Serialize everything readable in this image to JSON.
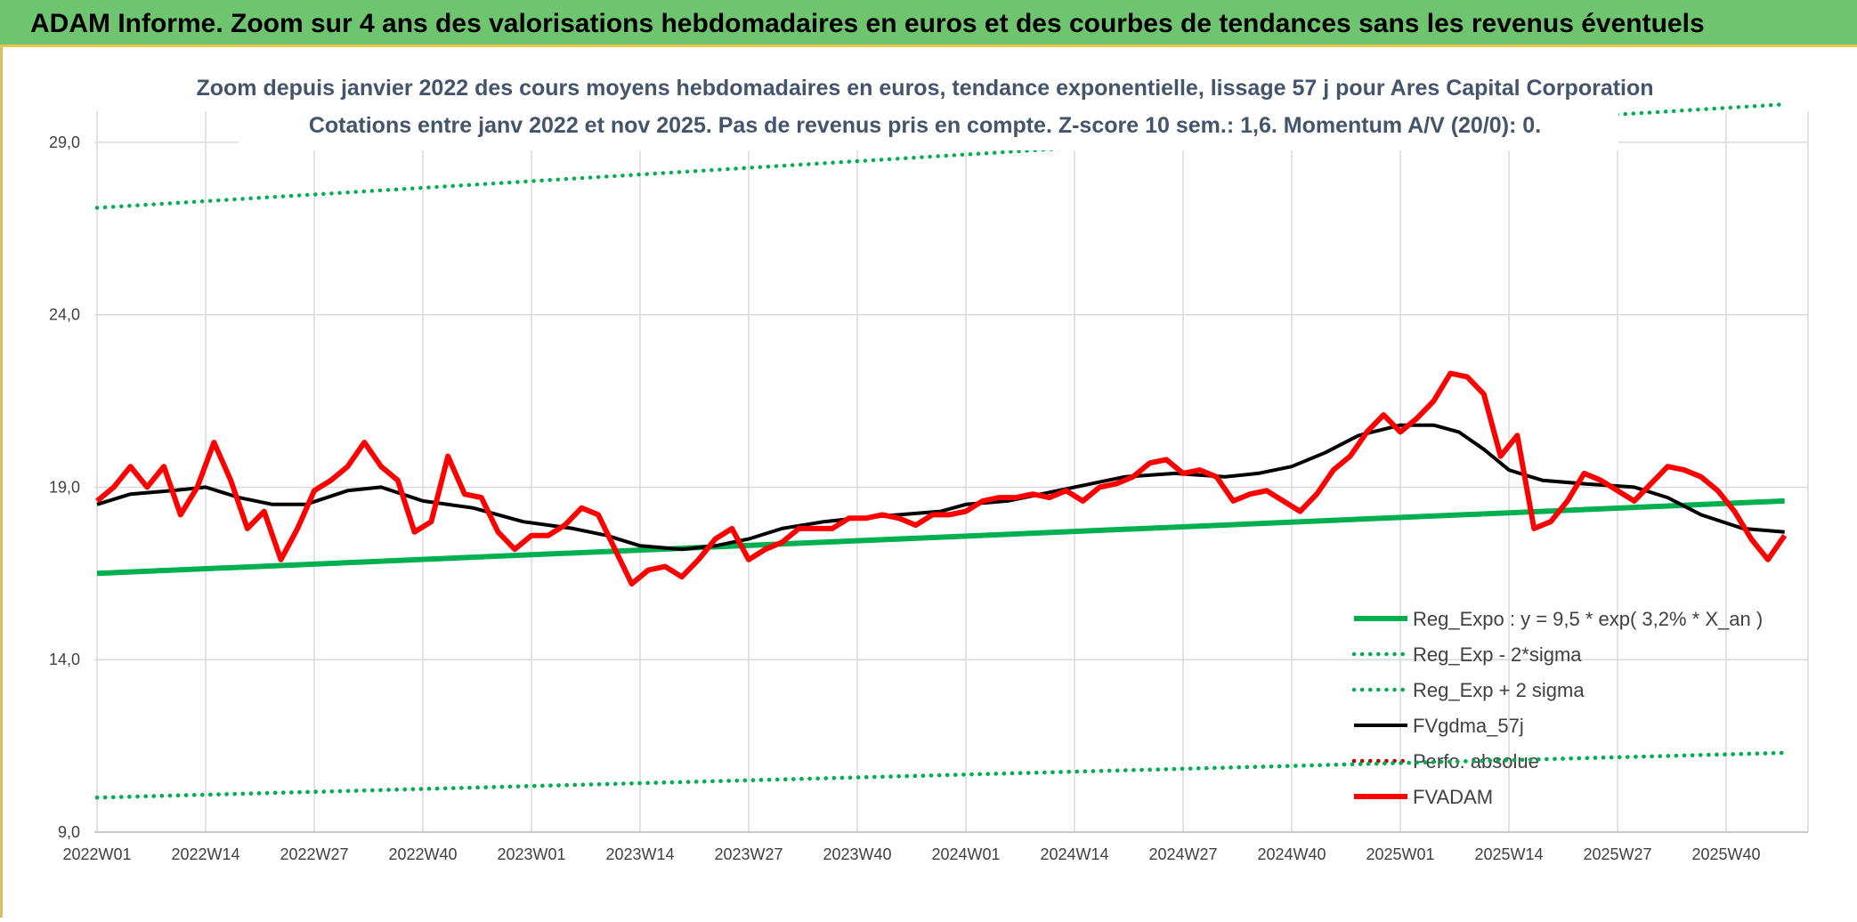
{
  "page": {
    "banner_title": "ADAM Informe. Zoom sur 4 ans des valorisations hebdomadaires en euros et des courbes de tendances sans les revenus éventuels"
  },
  "colors": {
    "banner": "#6fc46f",
    "trend": "#00b050",
    "ma": "#000000",
    "price": "#ff0000",
    "perf": "#c00000",
    "grid": "#d9d9d9",
    "subtitle": "#44546a"
  },
  "chart_data": {
    "type": "line",
    "title_line1": "Zoom depuis janvier 2022 des cours moyens hebdomadaires en euros, tendance exponentielle, lissage 57 j pour Ares Capital Corporation",
    "title_line2": "Cotations entre janv 2022 et nov 2025. Pas de revenus pris en compte. Z-score 10 sem.: 1,6. Momentum A/V (20/0): 0.",
    "xlabel": "",
    "ylabel": "",
    "ylim": [
      9,
      29.9
    ],
    "yticks": [
      "9,0",
      "14,0",
      "19,0",
      "24,0",
      "29,0"
    ],
    "ytick_values": [
      9,
      14,
      19,
      24,
      29
    ],
    "xticks": [
      "2022W01",
      "2022W14",
      "2022W27",
      "2022W40",
      "2023W01",
      "2023W14",
      "2023W27",
      "2023W40",
      "2024W01",
      "2024W14",
      "2024W27",
      "2024W40",
      "2025W01",
      "2025W14",
      "2025W27",
      "2025W40"
    ],
    "grid": true,
    "legend_position": "bottom-right",
    "series": [
      {
        "name": "Reg_Expo : y = 9,5 * exp( 3,2% *  X_an )",
        "style": "solid-thick",
        "color": "#00b050",
        "x": [
          "2022W01",
          "2025W47"
        ],
        "values": [
          16.5,
          18.6
        ]
      },
      {
        "name": "Reg_Exp - 2*sigma",
        "style": "dotted",
        "color": "#00b050",
        "x": [
          "2022W01",
          "2025W47"
        ],
        "values": [
          10.0,
          11.3
        ]
      },
      {
        "name": "Reg_Exp + 2 sigma",
        "style": "dotted",
        "color": "#00b050",
        "x": [
          "2022W01",
          "2025W47"
        ],
        "values": [
          27.1,
          30.1
        ]
      },
      {
        "name": "FVgdma_57j",
        "style": "solid",
        "color": "#000000",
        "x": [
          "2022W01",
          "2022W05",
          "2022W10",
          "2022W14",
          "2022W18",
          "2022W22",
          "2022W26",
          "2022W31",
          "2022W35",
          "2022W40",
          "2022W46",
          "2022W52",
          "2023W06",
          "2023W10",
          "2023W14",
          "2023W19",
          "2023W23",
          "2023W27",
          "2023W31",
          "2023W36",
          "2023W40",
          "2023W45",
          "2023W50",
          "2024W01",
          "2024W06",
          "2024W10",
          "2024W14",
          "2024W20",
          "2024W26",
          "2024W32",
          "2024W36",
          "2024W40",
          "2024W44",
          "2024W48",
          "2025W01",
          "2025W05",
          "2025W08",
          "2025W11",
          "2025W14",
          "2025W18",
          "2025W23",
          "2025W29",
          "2025W33",
          "2025W37",
          "2025W42",
          "2025W47"
        ],
        "values": [
          18.5,
          18.8,
          18.9,
          19.0,
          18.7,
          18.5,
          18.5,
          18.9,
          19.0,
          18.6,
          18.4,
          18.0,
          17.8,
          17.6,
          17.3,
          17.2,
          17.3,
          17.5,
          17.8,
          18.0,
          18.1,
          18.2,
          18.3,
          18.5,
          18.6,
          18.8,
          19.0,
          19.3,
          19.4,
          19.3,
          19.4,
          19.6,
          20.0,
          20.5,
          20.8,
          20.8,
          20.6,
          20.1,
          19.5,
          19.2,
          19.1,
          19.0,
          18.7,
          18.2,
          17.8,
          17.7
        ]
      },
      {
        "name": "Perfo. absolue",
        "style": "dotted",
        "color": "#c00000",
        "x": [],
        "values": []
      },
      {
        "name": "FVADAM",
        "style": "solid-thick",
        "color": "#ff0000",
        "x": [
          "2022W01",
          "2022W03",
          "2022W05",
          "2022W07",
          "2022W09",
          "2022W11",
          "2022W13",
          "2022W15",
          "2022W17",
          "2022W19",
          "2022W21",
          "2022W23",
          "2022W25",
          "2022W27",
          "2022W29",
          "2022W31",
          "2022W33",
          "2022W35",
          "2022W37",
          "2022W39",
          "2022W41",
          "2022W43",
          "2022W45",
          "2022W47",
          "2022W49",
          "2022W51",
          "2023W01",
          "2023W03",
          "2023W05",
          "2023W07",
          "2023W09",
          "2023W11",
          "2023W13",
          "2023W15",
          "2023W17",
          "2023W19",
          "2023W21",
          "2023W23",
          "2023W25",
          "2023W27",
          "2023W29",
          "2023W31",
          "2023W33",
          "2023W35",
          "2023W37",
          "2023W39",
          "2023W41",
          "2023W43",
          "2023W45",
          "2023W47",
          "2023W49",
          "2023W51",
          "2024W01",
          "2024W03",
          "2024W05",
          "2024W07",
          "2024W09",
          "2024W11",
          "2024W13",
          "2024W15",
          "2024W17",
          "2024W19",
          "2024W21",
          "2024W23",
          "2024W25",
          "2024W27",
          "2024W29",
          "2024W31",
          "2024W33",
          "2024W35",
          "2024W37",
          "2024W39",
          "2024W41",
          "2024W43",
          "2024W45",
          "2024W47",
          "2024W49",
          "2024W51",
          "2025W01",
          "2025W03",
          "2025W05",
          "2025W07",
          "2025W09",
          "2025W11",
          "2025W13",
          "2025W15",
          "2025W17",
          "2025W19",
          "2025W21",
          "2025W23",
          "2025W25",
          "2025W27",
          "2025W29",
          "2025W31",
          "2025W33",
          "2025W35",
          "2025W37",
          "2025W39",
          "2025W41",
          "2025W43",
          "2025W45",
          "2025W47"
        ],
        "values": [
          18.6,
          19.0,
          19.6,
          19.0,
          19.6,
          18.2,
          19.0,
          20.3,
          19.2,
          17.8,
          18.3,
          16.9,
          17.8,
          18.9,
          19.2,
          19.6,
          20.3,
          19.6,
          19.2,
          17.7,
          18.0,
          19.9,
          18.8,
          18.7,
          17.7,
          17.2,
          17.6,
          17.6,
          17.9,
          18.4,
          18.2,
          17.2,
          16.2,
          16.6,
          16.7,
          16.4,
          16.9,
          17.5,
          17.8,
          16.9,
          17.2,
          17.4,
          17.8,
          17.8,
          17.8,
          18.1,
          18.1,
          18.2,
          18.1,
          17.9,
          18.2,
          18.2,
          18.3,
          18.6,
          18.7,
          18.7,
          18.8,
          18.7,
          18.9,
          18.6,
          19.0,
          19.1,
          19.3,
          19.7,
          19.8,
          19.4,
          19.5,
          19.3,
          18.6,
          18.8,
          18.9,
          18.6,
          18.3,
          18.8,
          19.5,
          19.9,
          20.6,
          21.1,
          20.6,
          21.0,
          21.5,
          22.3,
          22.2,
          21.7,
          19.9,
          20.5,
          17.8,
          18.0,
          18.6,
          19.4,
          19.2,
          18.9,
          18.6,
          19.1,
          19.6,
          19.5,
          19.3,
          18.9,
          18.3,
          17.5,
          16.9,
          17.6
        ]
      }
    ]
  }
}
